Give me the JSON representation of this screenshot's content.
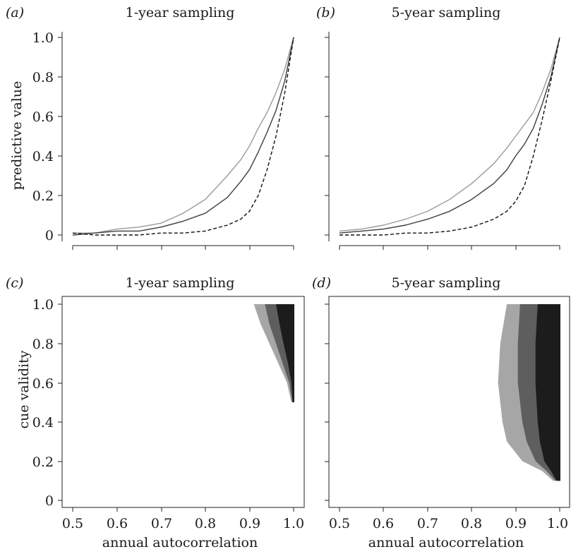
{
  "chart_data": [
    {
      "panel_label": "(a)",
      "type": "line",
      "title": "1-year sampling",
      "xlabel": "",
      "ylabel": "predictive value",
      "xlim": [
        0.5,
        1.0
      ],
      "ylim": [
        0,
        1.0
      ],
      "yticks": [
        "0",
        "0.2",
        "0.4",
        "0.6",
        "0.8",
        "1.0"
      ],
      "x": [
        0.5,
        0.55,
        0.6,
        0.65,
        0.7,
        0.75,
        0.8,
        0.85,
        0.88,
        0.9,
        0.92,
        0.94,
        0.96,
        0.98,
        1.0
      ],
      "series": [
        {
          "color": "#9a9a9a",
          "dash": "solid",
          "values": [
            0.01,
            0.01,
            0.03,
            0.04,
            0.06,
            0.11,
            0.18,
            0.3,
            0.38,
            0.45,
            0.54,
            0.62,
            0.72,
            0.84,
            1.0
          ]
        },
        {
          "color": "#3c3c3c",
          "dash": "solid",
          "values": [
            0.0,
            0.01,
            0.02,
            0.02,
            0.04,
            0.07,
            0.11,
            0.19,
            0.27,
            0.33,
            0.42,
            0.52,
            0.63,
            0.78,
            1.0
          ]
        },
        {
          "color": "#111111",
          "dash": "dashed",
          "values": [
            0.01,
            0.0,
            0.0,
            0.0,
            0.01,
            0.01,
            0.02,
            0.05,
            0.08,
            0.12,
            0.2,
            0.33,
            0.5,
            0.72,
            1.0
          ]
        }
      ]
    },
    {
      "panel_label": "(b)",
      "type": "line",
      "title": "5-year sampling",
      "xlabel": "",
      "ylabel": "",
      "xlim": [
        0.5,
        1.0
      ],
      "ylim": [
        0,
        1.0
      ],
      "yticks": [],
      "x": [
        0.5,
        0.55,
        0.6,
        0.65,
        0.7,
        0.75,
        0.8,
        0.85,
        0.88,
        0.9,
        0.92,
        0.94,
        0.96,
        0.98,
        1.0
      ],
      "series": [
        {
          "color": "#9a9a9a",
          "dash": "solid",
          "values": [
            0.02,
            0.03,
            0.05,
            0.08,
            0.12,
            0.18,
            0.26,
            0.36,
            0.44,
            0.5,
            0.56,
            0.62,
            0.72,
            0.84,
            1.0
          ]
        },
        {
          "color": "#3c3c3c",
          "dash": "solid",
          "values": [
            0.01,
            0.02,
            0.03,
            0.05,
            0.08,
            0.12,
            0.18,
            0.26,
            0.33,
            0.4,
            0.46,
            0.54,
            0.66,
            0.8,
            1.0
          ]
        },
        {
          "color": "#111111",
          "dash": "dashed",
          "values": [
            0.0,
            0.0,
            0.0,
            0.01,
            0.01,
            0.02,
            0.04,
            0.08,
            0.12,
            0.17,
            0.25,
            0.4,
            0.58,
            0.78,
            1.0
          ]
        }
      ]
    },
    {
      "panel_label": "(c)",
      "type": "heatmap",
      "title": "1-year sampling",
      "xlabel": "annual autocorrelation",
      "ylabel": "cue validity",
      "xlim": [
        0.5,
        1.0
      ],
      "ylim": [
        0,
        1.0
      ],
      "xticks": [
        "0.5",
        "0.6",
        "0.7",
        "0.8",
        "0.9",
        "1.0"
      ],
      "yticks": [
        "0",
        "0.2",
        "0.4",
        "0.6",
        "0.8",
        "1.0"
      ],
      "region_min_cue": 0.5,
      "colors": [
        "#a6a6a6",
        "#5e5e5e",
        "#1c1c1c"
      ],
      "boundaries": [
        {
          "cue": [
            1.0,
            0.9,
            0.8,
            0.7,
            0.6,
            0.5
          ],
          "x_start": [
            0.91,
            0.925,
            0.945,
            0.965,
            0.985,
            0.995
          ]
        },
        {
          "cue": [
            1.0,
            0.9,
            0.8,
            0.7,
            0.6,
            0.5
          ],
          "x_start": [
            0.935,
            0.945,
            0.96,
            0.975,
            0.99,
            0.997
          ]
        },
        {
          "cue": [
            1.0,
            0.9,
            0.8,
            0.7,
            0.6,
            0.5
          ],
          "x_start": [
            0.96,
            0.968,
            0.977,
            0.987,
            0.995,
            0.998
          ]
        }
      ]
    },
    {
      "panel_label": "(d)",
      "type": "heatmap",
      "title": "5-year sampling",
      "xlabel": "annual autocorrelation",
      "ylabel": "",
      "xlim": [
        0.5,
        1.0
      ],
      "ylim": [
        0,
        1.0
      ],
      "xticks": [
        "0.5",
        "0.6",
        "0.7",
        "0.8",
        "0.9",
        "1.0"
      ],
      "yticks": [],
      "region_min_cue": 0.1,
      "colors": [
        "#a6a6a6",
        "#5e5e5e",
        "#1c1c1c"
      ],
      "boundaries": [
        {
          "cue": [
            1.0,
            0.8,
            0.6,
            0.4,
            0.3,
            0.2,
            0.15,
            0.1
          ],
          "x_start": [
            0.88,
            0.865,
            0.86,
            0.87,
            0.88,
            0.915,
            0.96,
            0.985
          ]
        },
        {
          "cue": [
            1.0,
            0.8,
            0.6,
            0.4,
            0.3,
            0.2,
            0.15,
            0.1
          ],
          "x_start": [
            0.91,
            0.905,
            0.905,
            0.915,
            0.925,
            0.945,
            0.97,
            0.99
          ]
        },
        {
          "cue": [
            1.0,
            0.8,
            0.6,
            0.4,
            0.3,
            0.2,
            0.15,
            0.1
          ],
          "x_start": [
            0.95,
            0.945,
            0.945,
            0.95,
            0.955,
            0.965,
            0.98,
            0.993
          ]
        }
      ]
    }
  ]
}
